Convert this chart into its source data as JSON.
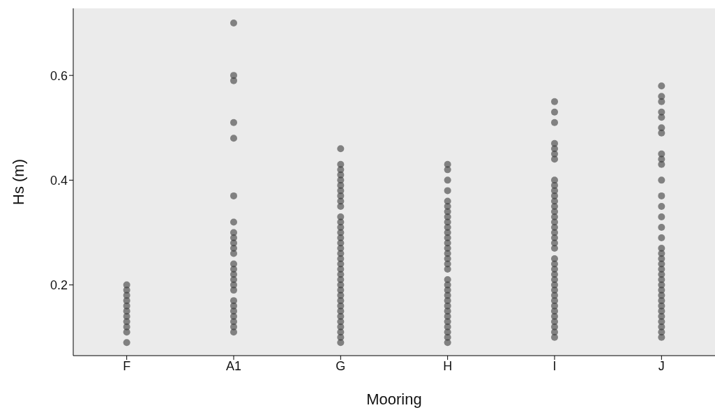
{
  "chart_data": {
    "type": "scatter",
    "xlabel": "Mooring",
    "ylabel": "Hs (m)",
    "categories": [
      "F",
      "A1",
      "G",
      "H",
      "I",
      "J"
    ],
    "ylim": [
      0.065,
      0.728
    ],
    "yticks": [
      0.2,
      0.4,
      0.6
    ],
    "marker": "circle",
    "series": [
      {
        "color": "#3a3a3a",
        "x": [
          "F",
          "F",
          "F",
          "F",
          "F",
          "F",
          "F",
          "F",
          "F",
          "F",
          "F"
        ],
        "values": [
          0.2,
          0.19,
          0.18,
          0.17,
          0.16,
          0.15,
          0.14,
          0.13,
          0.12,
          0.11,
          0.09
        ]
      },
      {
        "color": "#3a3a3a",
        "x": [
          "A1",
          "A1",
          "A1",
          "A1",
          "A1",
          "A1",
          "A1",
          "A1",
          "A1",
          "A1",
          "A1",
          "A1",
          "A1",
          "A1",
          "A1",
          "A1",
          "A1",
          "A1",
          "A1",
          "A1",
          "A1",
          "A1",
          "A1",
          "A1",
          "A1"
        ],
        "values": [
          0.7,
          0.6,
          0.59,
          0.51,
          0.48,
          0.37,
          0.32,
          0.3,
          0.29,
          0.28,
          0.27,
          0.26,
          0.24,
          0.23,
          0.22,
          0.21,
          0.2,
          0.19,
          0.17,
          0.16,
          0.15,
          0.14,
          0.13,
          0.12,
          0.11
        ]
      },
      {
        "color": "#3a3a3a",
        "x": [
          "G",
          "G",
          "G",
          "G",
          "G",
          "G",
          "G",
          "G",
          "G",
          "G",
          "G",
          "G",
          "G",
          "G",
          "G",
          "G",
          "G",
          "G",
          "G",
          "G",
          "G",
          "G",
          "G",
          "G",
          "G",
          "G",
          "G",
          "G",
          "G",
          "G",
          "G",
          "G",
          "G",
          "G",
          "G"
        ],
        "values": [
          0.46,
          0.43,
          0.42,
          0.41,
          0.4,
          0.39,
          0.38,
          0.37,
          0.36,
          0.35,
          0.33,
          0.32,
          0.31,
          0.3,
          0.29,
          0.28,
          0.27,
          0.26,
          0.25,
          0.24,
          0.23,
          0.22,
          0.21,
          0.2,
          0.19,
          0.18,
          0.17,
          0.16,
          0.15,
          0.14,
          0.13,
          0.12,
          0.11,
          0.1,
          0.09
        ]
      },
      {
        "color": "#3a3a3a",
        "x": [
          "H",
          "H",
          "H",
          "H",
          "H",
          "H",
          "H",
          "H",
          "H",
          "H",
          "H",
          "H",
          "H",
          "H",
          "H",
          "H",
          "H",
          "H",
          "H",
          "H",
          "H",
          "H",
          "H",
          "H",
          "H",
          "H",
          "H",
          "H",
          "H",
          "H",
          "H"
        ],
        "values": [
          0.43,
          0.42,
          0.4,
          0.38,
          0.36,
          0.35,
          0.34,
          0.33,
          0.32,
          0.31,
          0.3,
          0.29,
          0.28,
          0.27,
          0.26,
          0.25,
          0.24,
          0.23,
          0.21,
          0.2,
          0.19,
          0.18,
          0.17,
          0.16,
          0.15,
          0.14,
          0.13,
          0.12,
          0.11,
          0.1,
          0.09
        ]
      },
      {
        "color": "#3a3a3a",
        "x": [
          "I",
          "I",
          "I",
          "I",
          "I",
          "I",
          "I",
          "I",
          "I",
          "I",
          "I",
          "I",
          "I",
          "I",
          "I",
          "I",
          "I",
          "I",
          "I",
          "I",
          "I",
          "I",
          "I",
          "I",
          "I",
          "I",
          "I",
          "I",
          "I",
          "I",
          "I",
          "I",
          "I",
          "I",
          "I",
          "I",
          "I"
        ],
        "values": [
          0.55,
          0.53,
          0.51,
          0.47,
          0.46,
          0.45,
          0.44,
          0.4,
          0.39,
          0.38,
          0.37,
          0.36,
          0.35,
          0.34,
          0.33,
          0.32,
          0.31,
          0.3,
          0.29,
          0.28,
          0.27,
          0.25,
          0.24,
          0.23,
          0.22,
          0.21,
          0.2,
          0.19,
          0.18,
          0.17,
          0.16,
          0.15,
          0.14,
          0.13,
          0.12,
          0.11,
          0.1
        ]
      },
      {
        "color": "#3a3a3a",
        "x": [
          "J",
          "J",
          "J",
          "J",
          "J",
          "J",
          "J",
          "J",
          "J",
          "J",
          "J",
          "J",
          "J",
          "J",
          "J",
          "J",
          "J",
          "J",
          "J",
          "J",
          "J",
          "J",
          "J",
          "J",
          "J",
          "J",
          "J",
          "J",
          "J",
          "J",
          "J",
          "J",
          "J",
          "J"
        ],
        "values": [
          0.58,
          0.56,
          0.55,
          0.53,
          0.52,
          0.5,
          0.49,
          0.45,
          0.44,
          0.43,
          0.4,
          0.37,
          0.35,
          0.33,
          0.31,
          0.29,
          0.27,
          0.26,
          0.25,
          0.24,
          0.23,
          0.22,
          0.21,
          0.2,
          0.19,
          0.18,
          0.17,
          0.16,
          0.15,
          0.14,
          0.13,
          0.12,
          0.11,
          0.1
        ]
      }
    ]
  }
}
